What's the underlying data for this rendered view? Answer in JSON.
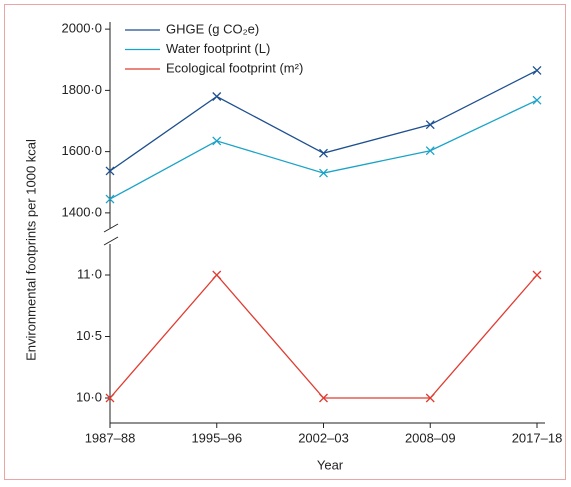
{
  "chart_data": {
    "type": "line",
    "y_label": "Environmental footprints per 1000 kcal",
    "x_label": "Year",
    "categories": [
      "1987–88",
      "1995–96",
      "2002–03",
      "2008–09",
      "2017–18"
    ],
    "series": [
      {
        "name": "GHGE (g CO₂e)",
        "color": "#1d4f8f",
        "values": [
          1537,
          1780,
          1595,
          1688,
          1865
        ]
      },
      {
        "name": "Water footprint (L)",
        "color": "#1aa3c8",
        "values": [
          1445,
          1635,
          1530,
          1603,
          1768
        ]
      },
      {
        "name": "Ecological footprint (m²)",
        "color": "#e03c31",
        "axis": "y2",
        "values": [
          10.0,
          11.0,
          10.0,
          10.0,
          11.0
        ]
      }
    ],
    "ylim": [
      1380,
      2020
    ],
    "yticks": [
      {
        "value": 1400,
        "label": "1400·0"
      },
      {
        "value": 1600,
        "label": "1600·0"
      },
      {
        "value": 1800,
        "label": "1800·0"
      },
      {
        "value": 2000,
        "label": "2000·0"
      }
    ],
    "y2lim": [
      9.8,
      11.2
    ],
    "y2ticks": [
      {
        "value": 10,
        "label": "10·0"
      },
      {
        "value": 10.5,
        "label": "10·5"
      },
      {
        "value": 11,
        "label": "11·0"
      }
    ]
  }
}
